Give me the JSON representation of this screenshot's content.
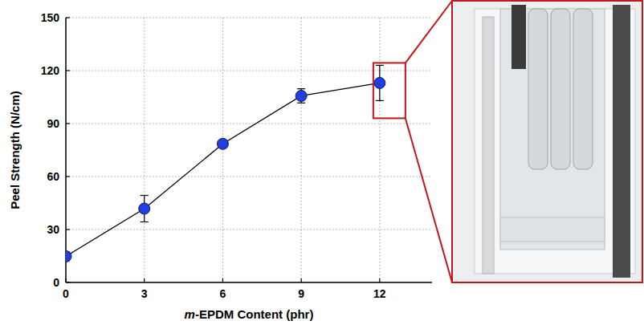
{
  "chart_data": {
    "type": "line",
    "x_label": "m-EPDM Content (phr)",
    "y_label": "Peel Strength (N/cm)",
    "x": [
      0,
      3,
      6,
      9,
      12
    ],
    "values": [
      14.8,
      41.8,
      78.5,
      105.7,
      113.0
    ],
    "errors": [
      2.5,
      7.5,
      2.0,
      4.0,
      10.0
    ],
    "color": "#1f3fe6",
    "marker": "circle",
    "line_style": "solid",
    "xlim": [
      0,
      14
    ],
    "xticks": [
      0,
      3,
      6,
      9,
      12
    ],
    "ylim": [
      0,
      150
    ],
    "yticks": [
      0,
      30,
      60,
      90,
      120,
      150
    ],
    "grid": true
  }
}
